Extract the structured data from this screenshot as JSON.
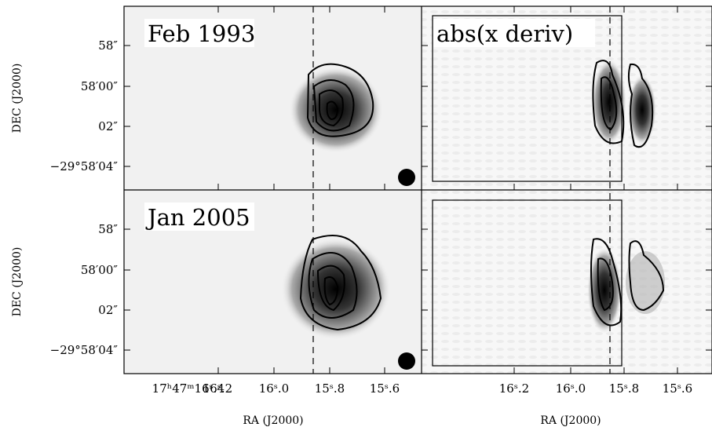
{
  "panels": {
    "labels": [
      "Feb 1993",
      "abs(x deriv)",
      "Jan 2005"
    ]
  },
  "y_axis": {
    "label": "DEC (J2000)",
    "ticks": [
      "58″",
      "58′00″",
      "02″",
      "−29°58′04″"
    ]
  },
  "x_axis": {
    "label": "RA (J2000)",
    "ticks_left": [
      "17ʰ47ᵐ16ˢ.4",
      "16ˢ.2",
      "16ˢ.0",
      "15ˢ.8",
      "15ˢ.6"
    ],
    "ticks_right": [
      "16ˢ.2",
      "16ˢ.0",
      "15ˢ.8",
      "15ˢ.6"
    ]
  }
}
